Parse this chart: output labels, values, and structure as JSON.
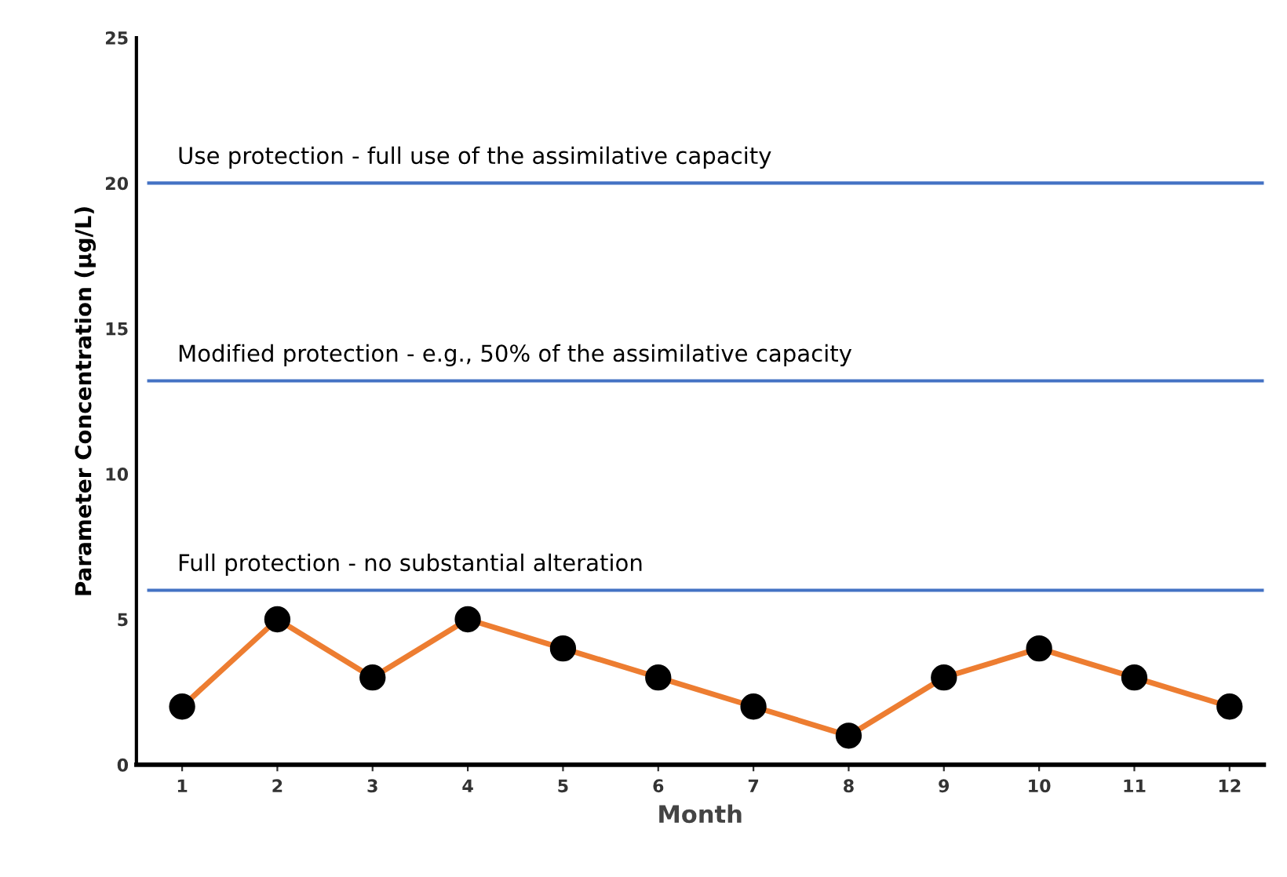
{
  "chart_data": {
    "type": "line",
    "xlabel": "Month",
    "ylabel": "Parameter Concentration (µg/L)",
    "categories": [
      "1",
      "2",
      "3",
      "4",
      "5",
      "6",
      "7",
      "8",
      "9",
      "10",
      "11",
      "12"
    ],
    "series": [
      {
        "color": "#ed7d31",
        "values": [
          2,
          5,
          3,
          5,
          4,
          3,
          2,
          1,
          3,
          4,
          3,
          2
        ]
      }
    ],
    "marker": "circle",
    "line_style": "solid",
    "ylim": [
      0,
      25
    ],
    "yticks": [
      0,
      5,
      10,
      15,
      20,
      25
    ],
    "grid": false,
    "legend": false,
    "ref_lines": [
      {
        "axis": "y",
        "value": 20,
        "label": "Use protection - full use of the assimilative capacity",
        "color": "#4472c4"
      },
      {
        "axis": "y",
        "value": 13.2,
        "label": "Modified protection - e.g., 50% of the assimilative capacity",
        "color": "#4472c4"
      },
      {
        "axis": "y",
        "value": 6,
        "label": "Full protection - no substantial alteration",
        "color": "#4472c4"
      }
    ]
  }
}
